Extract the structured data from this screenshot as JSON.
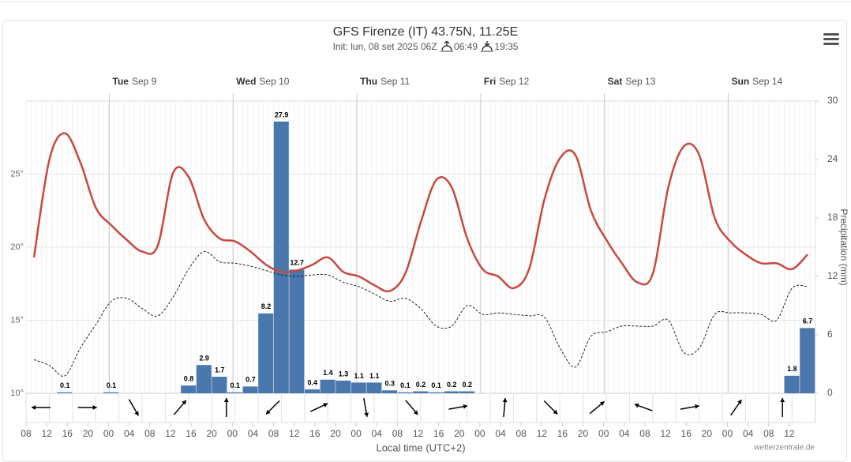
{
  "chart_data": {
    "type": "meteogram",
    "title": "GFS Firenze (IT) 43.75N, 11.25E",
    "subtitle": "Init: lun, 08 set 2025 06Z",
    "sunrise": "06:49",
    "sunset": "19:35",
    "days": [
      {
        "weekday": "Tue",
        "date": "Sep 9"
      },
      {
        "weekday": "Wed",
        "date": "Sep 10"
      },
      {
        "weekday": "Thu",
        "date": "Sep 11"
      },
      {
        "weekday": "Fri",
        "date": "Sep 12"
      },
      {
        "weekday": "Sat",
        "date": "Sep 13"
      },
      {
        "weekday": "Sun",
        "date": "Sep 14"
      }
    ],
    "x_labels": [
      "08",
      "12",
      "16",
      "20",
      "00",
      "04",
      "08",
      "12",
      "16",
      "20",
      "00",
      "04",
      "08",
      "12",
      "16",
      "20",
      "00",
      "04",
      "08",
      "12",
      "16",
      "20",
      "00",
      "04",
      "08",
      "12",
      "16",
      "20",
      "00",
      "04",
      "08",
      "12",
      "16",
      "20",
      "00",
      "04",
      "08",
      "12"
    ],
    "xlabel": "Local time (UTC+2)",
    "y2label": "Precipitation (mm)",
    "ylim": [
      10,
      30
    ],
    "yticks": [
      {
        "value": 10,
        "label": "10°"
      },
      {
        "value": 15,
        "label": "15°"
      },
      {
        "value": 20,
        "label": "20°"
      },
      {
        "value": 25,
        "label": "25°"
      }
    ],
    "y2lim": [
      0,
      30
    ],
    "y2ticks": [
      0,
      6,
      12,
      18,
      24,
      30
    ],
    "grid": true,
    "series": [
      {
        "type": "line",
        "color": "#c8483f",
        "values": [
          19.3,
          26.0,
          27.8,
          25.8,
          22.7,
          21.5,
          20.5,
          19.7,
          20.1,
          25.1,
          24.8,
          21.9,
          20.6,
          20.4,
          19.7,
          18.8,
          18.3,
          18.4,
          18.8,
          19.3,
          18.3,
          18.0,
          17.4,
          17.0,
          18.2,
          21.7,
          24.6,
          24.1,
          20.6,
          18.5,
          18.0,
          17.2,
          18.5,
          23.3,
          26.1,
          26.3,
          22.5,
          20.5,
          18.9,
          17.6,
          18.2,
          24.1,
          26.9,
          26.3,
          22.0,
          20.4,
          19.5,
          18.9,
          18.9,
          18.5,
          19.5
        ]
      },
      {
        "type": "line",
        "dash": true,
        "color": "#222222",
        "values": [
          12.3,
          11.9,
          11.2,
          13.1,
          14.7,
          16.3,
          16.5,
          15.8,
          15.3,
          16.6,
          18.5,
          19.7,
          19.0,
          18.9,
          18.7,
          18.4,
          18.1,
          18.0,
          18.1,
          18.1,
          17.6,
          17.3,
          16.8,
          16.3,
          16.5,
          15.8,
          14.6,
          14.6,
          16.0,
          15.4,
          15.5,
          15.4,
          15.3,
          15.2,
          13.1,
          11.8,
          13.9,
          14.2,
          14.6,
          14.6,
          14.6,
          15.0,
          12.8,
          13.1,
          15.4,
          15.5,
          15.5,
          15.4,
          15.0,
          17.2,
          17.3
        ]
      },
      {
        "type": "bar",
        "axis": "y2",
        "color": "#4a78ad",
        "values": [
          null,
          null,
          0.1,
          null,
          null,
          0.1,
          null,
          null,
          null,
          null,
          0.8,
          2.9,
          1.7,
          0.1,
          0.7,
          8.2,
          27.9,
          12.7,
          0.4,
          1.4,
          1.3,
          1.1,
          1.1,
          0.3,
          0.1,
          0.2,
          0.1,
          0.2,
          0.2,
          null,
          null,
          null,
          null,
          null,
          null,
          null,
          null,
          null,
          null,
          null,
          null,
          null,
          null,
          null,
          null,
          null,
          null,
          null,
          null,
          1.8,
          6.7
        ]
      }
    ],
    "wind": {
      "values": [
        270,
        90,
        150,
        40,
        0,
        225,
        65,
        170,
        140,
        80,
        5,
        135,
        50,
        290,
        80,
        35,
        0
      ]
    },
    "watermark": "wetterzentrale.de"
  }
}
